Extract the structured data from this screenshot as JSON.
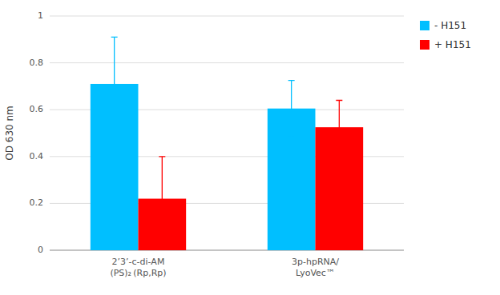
{
  "chart_data": {
    "type": "bar",
    "categories": [
      "2’3’-c-di-AM\n(PS)₂ (Rp,Rp)",
      "3p-hpRNA/\nLyoVec™"
    ],
    "series": [
      {
        "name": "- H151",
        "color": "#00BFFF",
        "values": [
          0.71,
          0.605
        ],
        "errors": [
          0.2,
          0.12
        ]
      },
      {
        "name": "+ H151",
        "color": "#FF0000",
        "values": [
          0.22,
          0.525
        ],
        "errors": [
          0.18,
          0.115
        ]
      }
    ],
    "ylabel": "OD 630 nm",
    "ylim": [
      0,
      1.0
    ],
    "yticks": [
      0,
      0.2,
      0.4,
      0.6,
      0.8,
      1
    ],
    "grid": true,
    "legend": "right"
  }
}
